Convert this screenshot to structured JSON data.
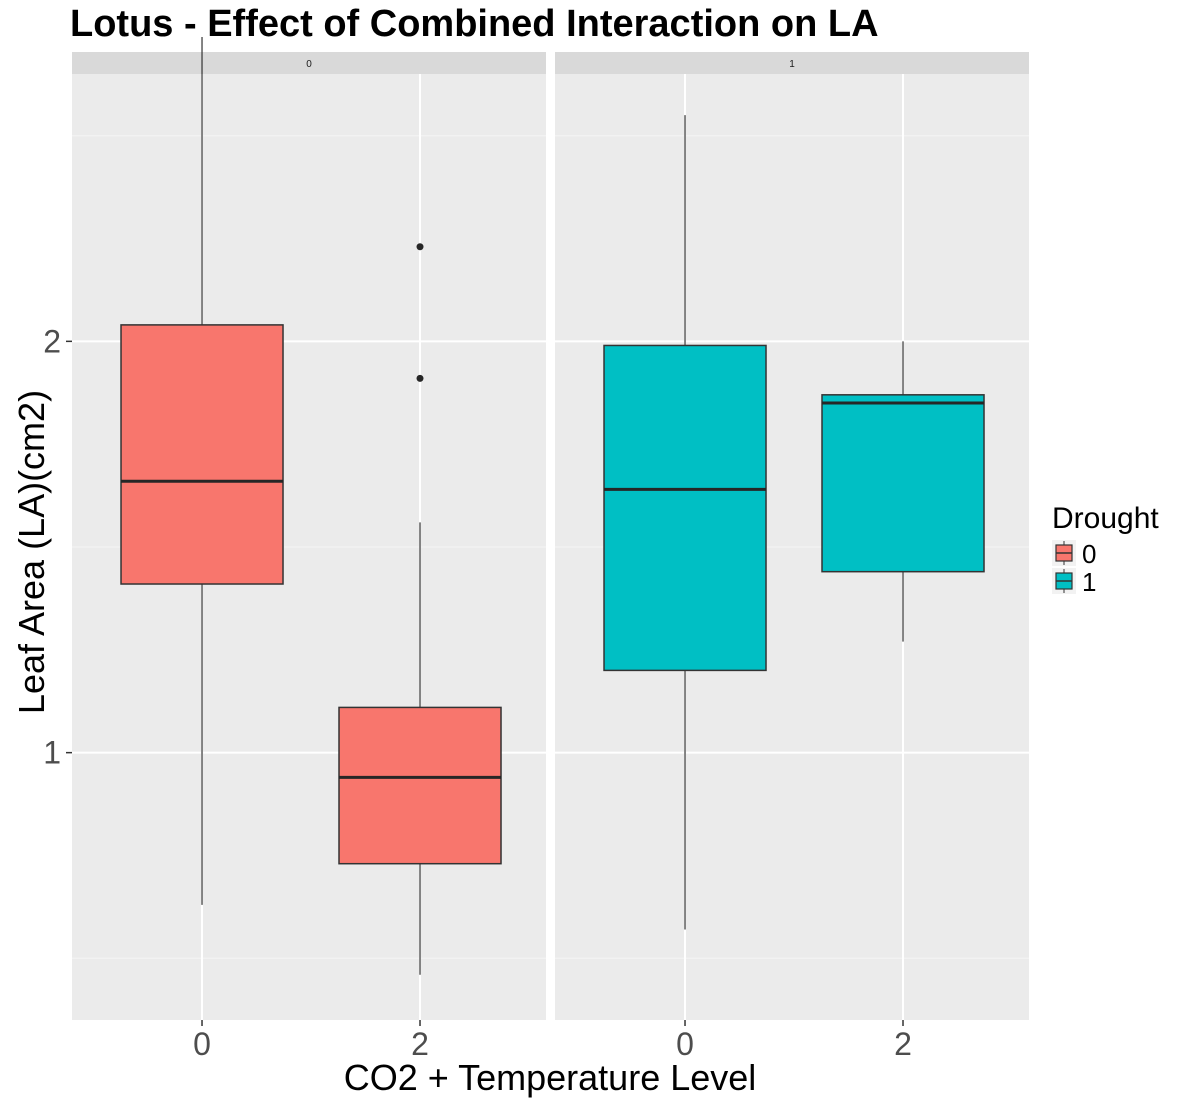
{
  "chart_data": {
    "type": "box",
    "title": "Lotus - Effect of Combined Interaction on LA",
    "xlabel": "CO2 + Temperature Level",
    "ylabel": "Leaf Area (LA)(cm2)",
    "facet_labels": [
      "0",
      "1"
    ],
    "categories": [
      "0",
      "2"
    ],
    "y_ticks": [
      1,
      2
    ],
    "ylim": [
      0.35,
      2.65
    ],
    "grid": true,
    "legend": {
      "title": "Drought",
      "position": "right",
      "entries": [
        {
          "label": "0",
          "color": "#F8766D"
        },
        {
          "label": "1",
          "color": "#00BFC4"
        }
      ]
    },
    "boxes": [
      {
        "facet": "0",
        "x": "0",
        "drought": "0",
        "whisker_low": 0.63,
        "q1": 1.41,
        "median": 1.66,
        "q3": 2.04,
        "whisker_high": 2.74,
        "outliers": []
      },
      {
        "facet": "0",
        "x": "2",
        "drought": "0",
        "whisker_low": 0.46,
        "q1": 0.73,
        "median": 0.94,
        "q3": 1.11,
        "whisker_high": 1.56,
        "outliers": [
          1.91,
          2.23
        ]
      },
      {
        "facet": "1",
        "x": "0",
        "drought": "1",
        "whisker_low": 0.57,
        "q1": 1.2,
        "median": 1.64,
        "q3": 1.99,
        "whisker_high": 2.55,
        "outliers": []
      },
      {
        "facet": "1",
        "x": "2",
        "drought": "1",
        "whisker_low": 1.27,
        "q1": 1.44,
        "median": 1.85,
        "q3": 1.87,
        "whisker_high": 2.0,
        "outliers": []
      }
    ]
  }
}
